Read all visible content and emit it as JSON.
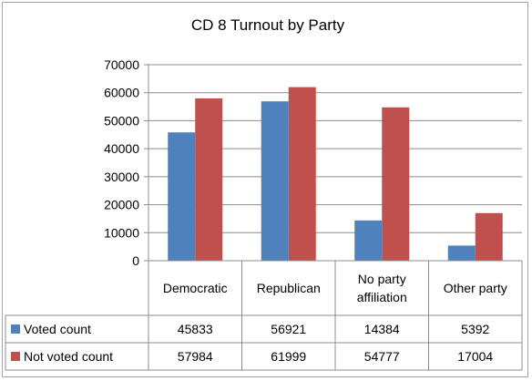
{
  "chart_data": {
    "type": "bar",
    "title": "CD 8 Turnout by Party",
    "categories": [
      "Democratic",
      "Republican",
      "No party affiliation",
      "Other party"
    ],
    "category_lines": [
      [
        "Democratic"
      ],
      [
        "Republican"
      ],
      [
        "No party",
        "affiliation"
      ],
      [
        "Other party"
      ]
    ],
    "series": [
      {
        "name": "Voted count",
        "values": [
          45833,
          56921,
          14384,
          5392
        ],
        "color": "#4f81bd"
      },
      {
        "name": "Not voted count",
        "values": [
          57984,
          61999,
          54777,
          17004
        ],
        "color": "#c0504d"
      }
    ],
    "ylim": [
      0,
      70000
    ],
    "yticks": [
      "0",
      "10000",
      "20000",
      "30000",
      "40000",
      "50000",
      "60000",
      "70000"
    ],
    "grid": true,
    "legend": "data table below chart"
  }
}
